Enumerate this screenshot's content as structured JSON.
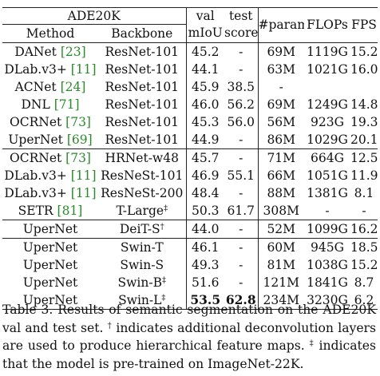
{
  "header": {
    "dataset": "ADE20K",
    "method": "Method",
    "backbone": "Backbone",
    "miou_top": "val",
    "miou_bottom": "mIoU",
    "test_top": "test",
    "test_bottom": "score",
    "params": "#param.",
    "flops": "FLOPs",
    "fps": "FPS"
  },
  "groups": [
    {
      "rows": [
        {
          "name": "DANet",
          "ref": "[23]",
          "backbone": "ResNet-101",
          "miou": "45.2",
          "test": "-",
          "params": "69M",
          "flops": "1119G",
          "fps": "15.2"
        },
        {
          "name": "DLab.v3+",
          "ref": "[11]",
          "backbone": "ResNet-101",
          "miou": "44.1",
          "test": "-",
          "params": "63M",
          "flops": "1021G",
          "fps": "16.0"
        },
        {
          "name": "ACNet",
          "ref": "[24]",
          "backbone": "ResNet-101",
          "miou": "45.9",
          "test": "38.5",
          "params": "-",
          "flops": "",
          "fps": ""
        },
        {
          "name": "DNL",
          "ref": "[71]",
          "backbone": "ResNet-101",
          "miou": "46.0",
          "test": "56.2",
          "params": "69M",
          "flops": "1249G",
          "fps": "14.8"
        },
        {
          "name": "OCRNet",
          "ref": "[73]",
          "backbone": "ResNet-101",
          "miou": "45.3",
          "test": "56.0",
          "params": "56M",
          "flops": "923G",
          "fps": "19.3"
        },
        {
          "name": "UperNet",
          "ref": "[69]",
          "backbone": "ResNet-101",
          "miou": "44.9",
          "test": "-",
          "params": "86M",
          "flops": "1029G",
          "fps": "20.1"
        }
      ]
    },
    {
      "rows": [
        {
          "name": "OCRNet",
          "ref": "[73]",
          "backbone": "HRNet-w48",
          "miou": "45.7",
          "test": "-",
          "params": "71M",
          "flops": "664G",
          "fps": "12.5"
        },
        {
          "name": "DLab.v3+",
          "ref": "[11]",
          "backbone": "ResNeSt-101",
          "miou": "46.9",
          "test": "55.1",
          "params": "66M",
          "flops": "1051G",
          "fps": "11.9"
        },
        {
          "name": "DLab.v3+",
          "ref": "[11]",
          "backbone": "ResNeSt-200",
          "miou": "48.4",
          "test": "-",
          "params": "88M",
          "flops": "1381G",
          "fps": "8.1"
        },
        {
          "name": "SETR",
          "ref": "[81]",
          "backbone": "T-Large",
          "sup": "‡",
          "miou": "50.3",
          "test": "61.7",
          "params": "308M",
          "flops": "-",
          "fps": "-"
        }
      ]
    },
    {
      "rows": [
        {
          "name": "UperNet",
          "ref": "",
          "backbone": "DeiT-S",
          "sup": "†",
          "miou": "44.0",
          "test": "-",
          "params": "52M",
          "flops": "1099G",
          "fps": "16.2"
        }
      ]
    },
    {
      "rows": [
        {
          "name": "UperNet",
          "ref": "",
          "backbone": "Swin-T",
          "miou": "46.1",
          "test": "-",
          "params": "60M",
          "flops": "945G",
          "fps": "18.5"
        },
        {
          "name": "UperNet",
          "ref": "",
          "backbone": "Swin-S",
          "miou": "49.3",
          "test": "-",
          "params": "81M",
          "flops": "1038G",
          "fps": "15.2"
        },
        {
          "name": "UperNet",
          "ref": "",
          "backbone": "Swin-B",
          "sup": "‡",
          "miou": "51.6",
          "test": "-",
          "params": "121M",
          "flops": "1841G",
          "fps": "8.7"
        },
        {
          "name": "UperNet",
          "ref": "",
          "backbone": "Swin-L",
          "sup": "‡",
          "miou": "53.5",
          "test": "62.8",
          "params": "234M",
          "flops": "3230G",
          "fps": "6.2",
          "bold": true
        }
      ]
    }
  ],
  "caption": {
    "part1": "Table 3. Results of semantic segmentation on the ADE20K val and test set. ",
    "dagger": "†",
    "part2": " indicates additional deconvolution layers are used to produce hierarchical feature maps. ",
    "ddagger": "‡",
    "part3": " indicates that the model is pre-trained on ImageNet-22K."
  }
}
